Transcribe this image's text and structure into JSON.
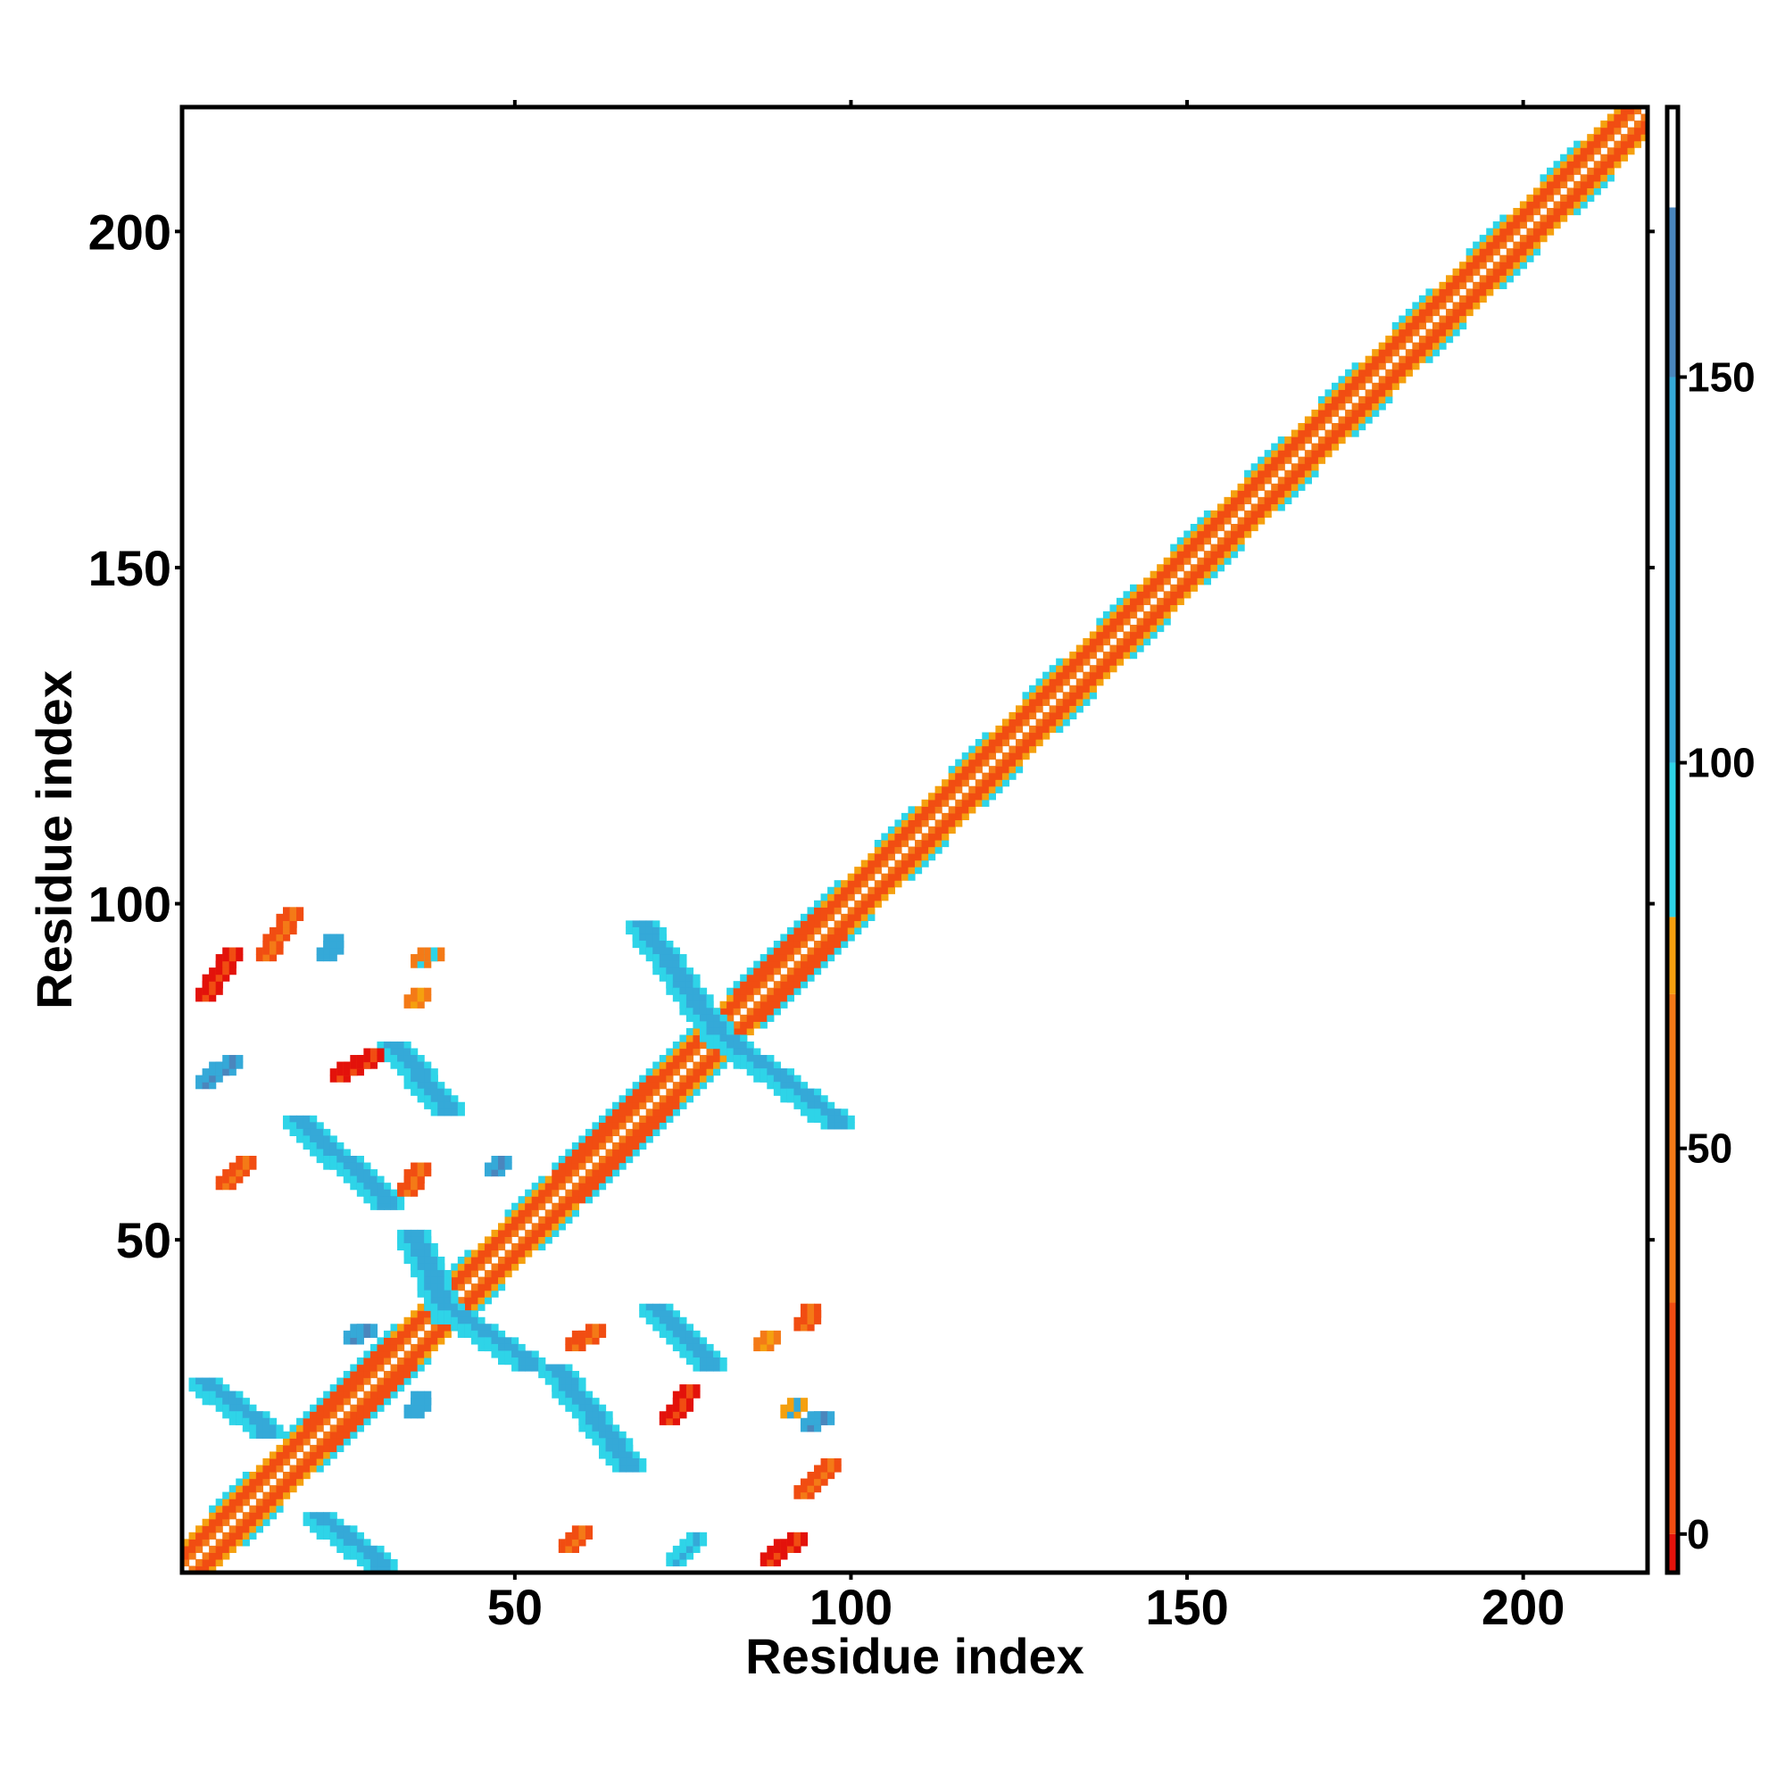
{
  "chart_data": {
    "type": "heatmap",
    "title": "",
    "xlabel": "Residue index",
    "ylabel": "Residue index",
    "xlim": [
      1,
      218
    ],
    "ylim": [
      1,
      218
    ],
    "x_ticks": [
      50,
      100,
      150,
      200
    ],
    "y_ticks": [
      50,
      100,
      150,
      200
    ],
    "grid": false,
    "colorbar": {
      "range": [
        -5,
        185
      ],
      "ticks": [
        0,
        50,
        100,
        150
      ],
      "bands": [
        {
          "from": -5,
          "to": 0,
          "color": "#e3120b"
        },
        {
          "from": 0,
          "to": 30,
          "color": "#f14d12"
        },
        {
          "from": 30,
          "to": 70,
          "color": "#f47a17"
        },
        {
          "from": 70,
          "to": 80,
          "color": "#f5a00f"
        },
        {
          "from": 80,
          "to": 100,
          "color": "#2ed4e8"
        },
        {
          "from": 100,
          "to": 150,
          "color": "#35a9d8"
        },
        {
          "from": 150,
          "to": 172,
          "color": "#4a86bd"
        },
        {
          "from": 172,
          "to": 185,
          "color": "#ffffff"
        }
      ]
    },
    "diagonal": {
      "from": 1,
      "to": 218,
      "bands": [
        {
          "offset": 1,
          "value": 40
        },
        {
          "offset": 2,
          "value": 5
        },
        {
          "offset": 3,
          "value": 20
        },
        {
          "offset": 4,
          "value": 75
        },
        {
          "offset": 5,
          "value": 90
        }
      ],
      "helix_segments": [
        [
          19,
          31
        ],
        [
          56,
          70
        ],
        [
          83,
          95
        ]
      ]
    },
    "cells": [
      {
        "x": [
          21,
          30
        ],
        "y": [
          2,
          9
        ],
        "value": 130,
        "dir": "anti"
      },
      {
        "x": [
          4,
          13
        ],
        "y": [
          22,
          29
        ],
        "value": 125,
        "dir": "anti"
      },
      {
        "x": [
          56,
          67
        ],
        "y": [
          17,
          31
        ],
        "value": 128,
        "dir": "anti"
      },
      {
        "x": [
          71,
          79
        ],
        "y": [
          32,
          40
        ],
        "value": 118,
        "dir": "anti"
      },
      {
        "x": [
          35,
          40
        ],
        "y": [
          39,
          51
        ],
        "value": 130,
        "dir": "anti"
      },
      {
        "x": [
          40,
          52
        ],
        "y": [
          32,
          40
        ],
        "value": 120,
        "dir": "anti"
      },
      {
        "x": [
          18,
          31
        ],
        "y": [
          56,
          68
        ],
        "value": 120,
        "dir": "anti"
      },
      {
        "x": [
          32,
          40
        ],
        "y": [
          70,
          79
        ],
        "value": 120,
        "dir": "anti"
      },
      {
        "x": [
          69,
          81
        ],
        "y": [
          80,
          97
        ],
        "value": 125,
        "dir": "anti"
      },
      {
        "x": [
          80,
          98
        ],
        "y": [
          68,
          81
        ],
        "value": 122,
        "dir": "anti"
      },
      {
        "x": [
          4,
          8
        ],
        "y": [
          87,
          93
        ],
        "value": 15,
        "dir": "para"
      },
      {
        "x": [
          13,
          17
        ],
        "y": [
          93,
          99
        ],
        "value": 45,
        "dir": "para"
      },
      {
        "x": [
          24,
          29
        ],
        "y": [
          75,
          78
        ],
        "value": 20,
        "dir": "para"
      },
      {
        "x": [
          7,
          10
        ],
        "y": [
          59,
          62
        ],
        "value": 45,
        "dir": "para"
      },
      {
        "x": [
          34,
          36
        ],
        "y": [
          58,
          61
        ],
        "value": 40,
        "dir": "para"
      },
      {
        "x": [
          59,
          62
        ],
        "y": [
          35,
          37
        ],
        "value": 40,
        "dir": "para"
      },
      {
        "x": [
          73,
          76
        ],
        "y": [
          24,
          28
        ],
        "value": 15,
        "dir": "para"
      },
      {
        "x": [
          88,
          92
        ],
        "y": [
          3,
          6
        ],
        "value": 25,
        "dir": "para"
      },
      {
        "x": [
          93,
          97
        ],
        "y": [
          13,
          17
        ],
        "value": 40,
        "dir": "para"
      },
      {
        "x": [
          58,
          60
        ],
        "y": [
          5,
          7
        ],
        "value": 45,
        "dir": "para"
      },
      {
        "x": [
          4,
          8
        ],
        "y": [
          74,
          77
        ],
        "value": 150,
        "dir": "para"
      },
      {
        "x": [
          74,
          77
        ],
        "y": [
          3,
          6
        ],
        "value": 115,
        "dir": "para"
      },
      {
        "x": [
          36,
          38
        ],
        "y": [
          92,
          93
        ],
        "value": 80,
        "dir": "para"
      },
      {
        "x": [
          35,
          36
        ],
        "y": [
          86,
          87
        ],
        "value": 75,
        "dir": "para"
      },
      {
        "x": [
          93,
          94
        ],
        "y": [
          38,
          40
        ],
        "value": 60,
        "dir": "para"
      },
      {
        "x": [
          87,
          88
        ],
        "y": [
          35,
          36
        ],
        "value": 75,
        "dir": "para"
      },
      {
        "x": [
          22,
          23
        ],
        "y": [
          93,
          95
        ],
        "value": 140,
        "dir": "para"
      },
      {
        "x": [
          94,
          96
        ],
        "y": [
          23,
          24
        ],
        "value": 150,
        "dir": "para"
      },
      {
        "x": [
          91,
          92
        ],
        "y": [
          25,
          26
        ],
        "value": 110,
        "dir": "para"
      },
      {
        "x": [
          47,
          48
        ],
        "y": [
          61,
          62
        ],
        "value": 150,
        "dir": "para"
      },
      {
        "x": [
          26,
          28
        ],
        "y": [
          36,
          37
        ],
        "value": 150,
        "dir": "para"
      },
      {
        "x": [
          35,
          36
        ],
        "y": [
          25,
          27
        ],
        "value": 140,
        "dir": "para"
      }
    ]
  }
}
